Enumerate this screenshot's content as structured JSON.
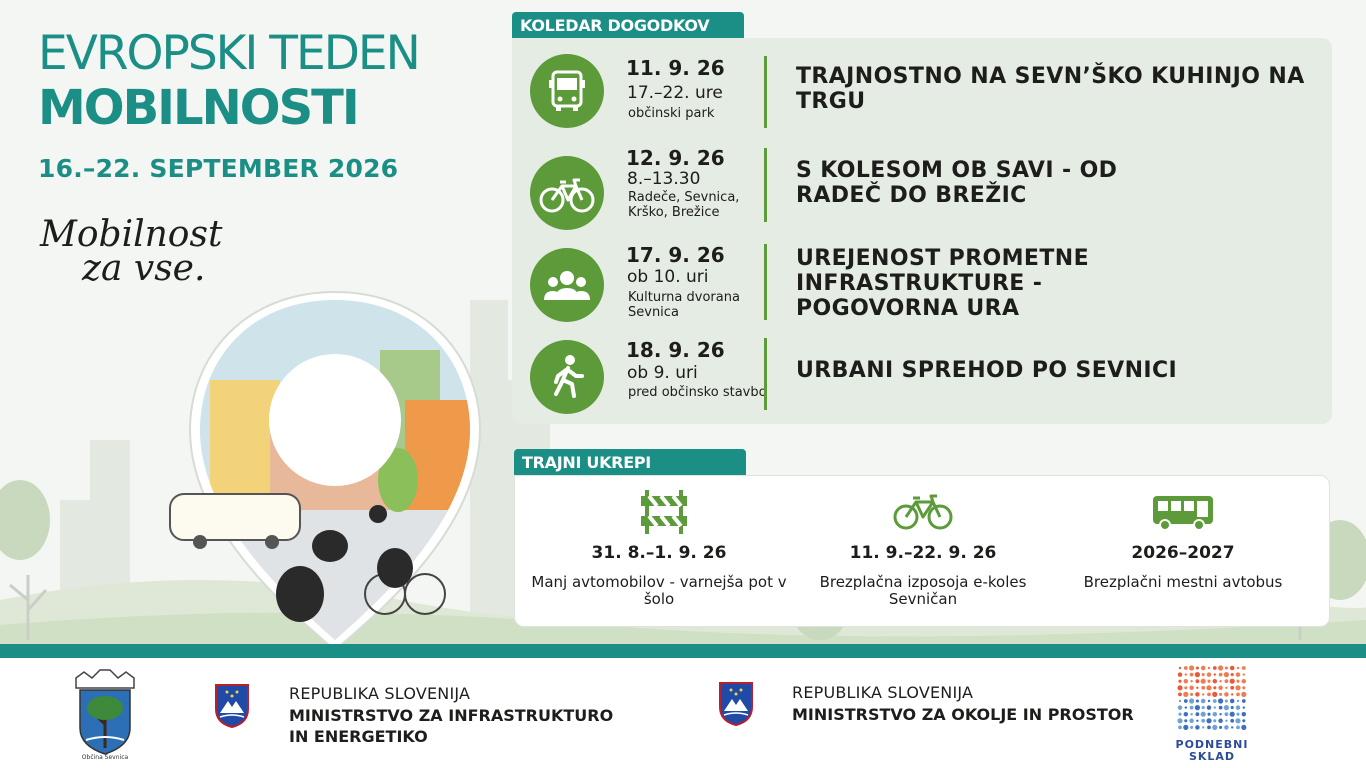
{
  "header": {
    "title_line1": "EVROPSKI TEDEN",
    "title_line2": "MOBILNOSTI",
    "dates": "16.–22. SEPTEMBER 2026",
    "slogan_line1": "Mobilnost",
    "slogan_line2": "za vse."
  },
  "calendar": {
    "heading": "KOLEDAR DOGODKOV",
    "events": [
      {
        "icon": "bus-icon",
        "date": "11. 9. 26",
        "time": "17.–22. ure",
        "place": "občinski park",
        "title": "TRAJNOSTNO NA SEVN’ŠKO KUHINJO NA TRGU"
      },
      {
        "icon": "bicycle-icon",
        "date": "12. 9. 26",
        "time": "8.–13.30",
        "place": "Radeče, Sevnica, Krško, Brežice",
        "title": "S KOLESOM OB SAVI - OD RADEČ DO BREŽIC"
      },
      {
        "icon": "group-icon",
        "date": "17. 9. 26",
        "time": "ob 10. uri",
        "place": "Kulturna dvorana Sevnica",
        "title": "UREJENOST PROMETNE INFRASTRUKTURE - POGOVORNA URA"
      },
      {
        "icon": "walking-person-icon",
        "date": "18. 9. 26",
        "time": "ob 9. uri",
        "place": "pred občinsko stavbo",
        "title": "URBANI SPREHOD PO SEVNICI"
      }
    ]
  },
  "permanent": {
    "heading": "TRAJNI UKREPI",
    "measures": [
      {
        "icon": "road-barrier-icon",
        "date": "31. 8.–1. 9. 26",
        "desc": "Manj avtomobilov - varnejša pot v šolo"
      },
      {
        "icon": "bicycle-icon",
        "date": "11. 9.–22. 9. 26",
        "desc": "Brezplačna izposoja e-koles Sevničan"
      },
      {
        "icon": "bus-icon",
        "date": "2026–2027",
        "desc": "Brezplačni mestni avtobus"
      }
    ]
  },
  "footer": {
    "municipality_label": "Občina Sevnica",
    "ministry1": {
      "line1": "REPUBLIKA SLOVENIJA",
      "line2": "MINISTRSTVO ZA INFRASTRUKTURO",
      "line3": "IN ENERGETIKO"
    },
    "ministry2": {
      "line1": "REPUBLIKA SLOVENIJA",
      "line2": "MINISTRSTVO ZA OKOLJE IN PROSTOR"
    },
    "fund": {
      "line1": "PODNEBNI",
      "line2": "SKLAD"
    }
  },
  "colors": {
    "teal": "#1b8e86",
    "green": "#5d9b3a",
    "panel": "#e5ece3"
  }
}
